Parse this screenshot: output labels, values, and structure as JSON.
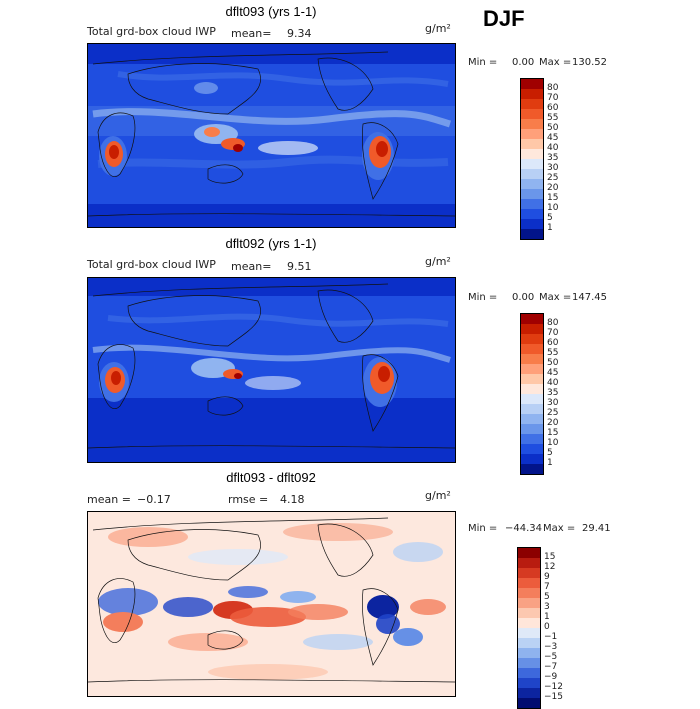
{
  "season": "DJF",
  "colorbars": {
    "iwp": {
      "labels": [
        "80",
        "70",
        "60",
        "55",
        "50",
        "45",
        "40",
        "35",
        "30",
        "25",
        "20",
        "15",
        "10",
        "5",
        "1"
      ],
      "colors": [
        "#a00000",
        "#c81e00",
        "#e03c10",
        "#f05a2a",
        "#f87d4a",
        "#ffa07a",
        "#ffc8a8",
        "#ffe8dc",
        "#dce8fa",
        "#b8d0f5",
        "#90b4f0",
        "#6a96ea",
        "#4070e6",
        "#1f4ee0",
        "#0b2fc8",
        "#02148a"
      ]
    },
    "diff": {
      "labels": [
        "15",
        "12",
        "9",
        "7",
        "5",
        "3",
        "1",
        "0",
        "−1",
        "−3",
        "−5",
        "−7",
        "−9",
        "−12",
        "−15"
      ],
      "colors": [
        "#8c0000",
        "#b81c10",
        "#d63a22",
        "#ec5c3c",
        "#f47e5c",
        "#f9a284",
        "#fcc8b0",
        "#ffe6da",
        "#dfe9f8",
        "#bad2f4",
        "#8fb3ee",
        "#6690e6",
        "#3d68dc",
        "#1f44c8",
        "#0c24a0",
        "#020c70"
      ]
    }
  },
  "chart_data": [
    {
      "type": "heatmap",
      "title": "dflt093 (yrs 1-1)",
      "subtitle": "Total grd-box cloud IWP",
      "mean_label": "mean=",
      "mean": "9.34",
      "units": "g/m²",
      "min_label": "Min =",
      "min": "0.00",
      "max_label": "Max =",
      "max": "130.52",
      "colorbar": "iwp"
    },
    {
      "type": "heatmap",
      "title": "dflt092 (yrs 1-1)",
      "subtitle": "Total grd-box cloud IWP",
      "mean_label": "mean=",
      "mean": "9.51",
      "units": "g/m²",
      "min_label": "Min =",
      "min": "0.00",
      "max_label": "Max =",
      "max": "147.45",
      "colorbar": "iwp"
    },
    {
      "type": "heatmap",
      "title": "dflt093 - dflt092",
      "mean_label": "mean =",
      "mean": "−0.17",
      "rmse_label": "rmse =",
      "rmse": "4.18",
      "units": "g/m²",
      "min_label": "Min =",
      "min": "−44.34",
      "max_label": "Max =",
      "max": "29.41",
      "colorbar": "diff"
    }
  ]
}
